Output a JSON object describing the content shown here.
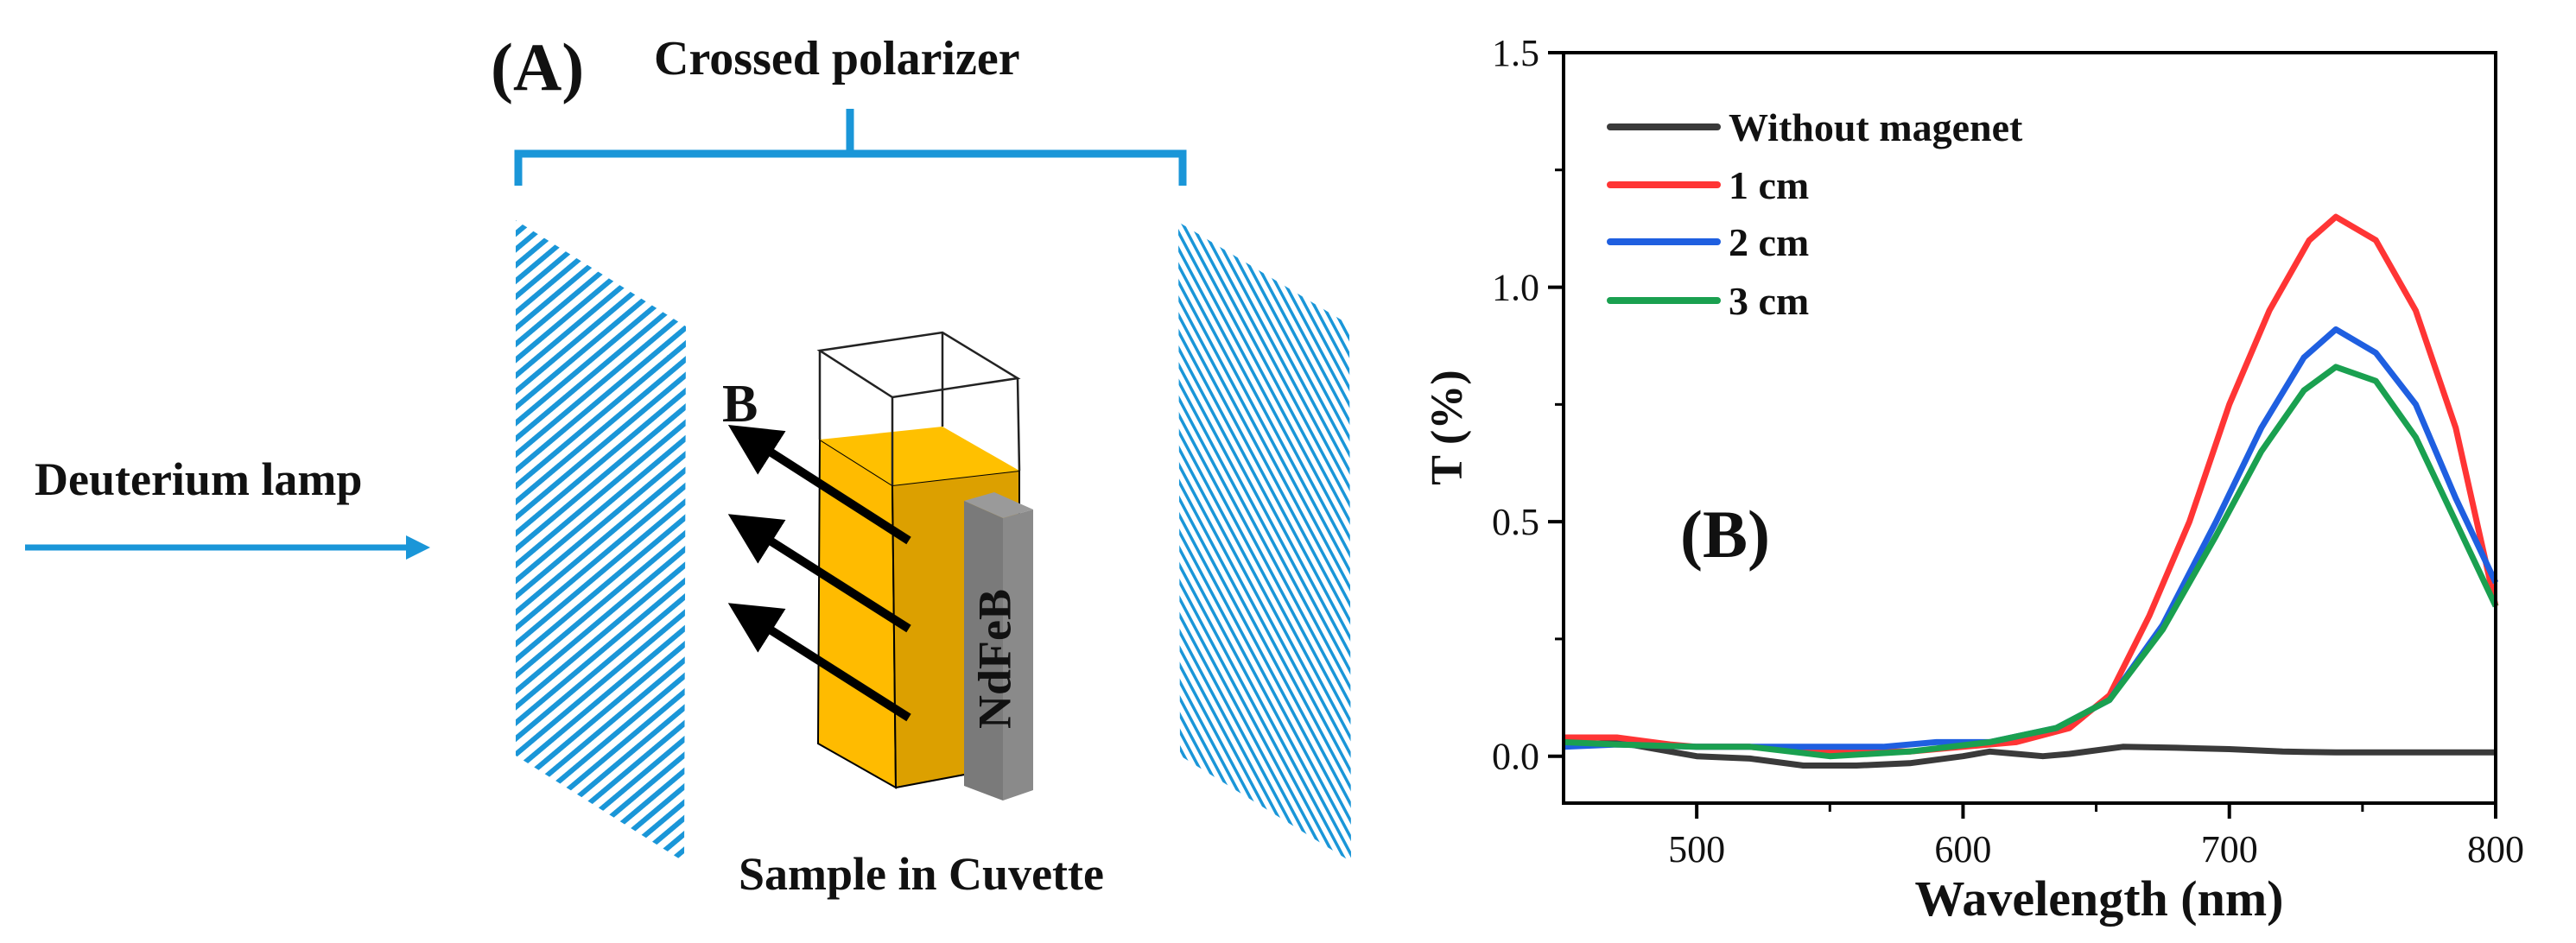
{
  "diagram": {
    "panel_label": "(A)",
    "polarizer_label": "Crossed polarizer",
    "lamp_label": "Deuterium lamp",
    "field_label": "B",
    "magnet_label": "NdFeB",
    "sample_label": "Sample in Cuvette",
    "colors": {
      "polarizer": "#1a96d8",
      "liquid_front": "#ffbb00",
      "liquid_side": "#dca000",
      "magnet": "#808080"
    }
  },
  "chart_data": {
    "type": "line",
    "panel_label": "(B)",
    "title": "",
    "xlabel": "Wavelength (nm)",
    "ylabel": "T (%)",
    "xlim": [
      450,
      800
    ],
    "ylim": [
      -0.1,
      1.5
    ],
    "xticks": [
      500,
      600,
      700,
      800
    ],
    "xtick_labels": [
      "500",
      "600",
      "700",
      "800"
    ],
    "xminor": [
      550,
      650,
      750
    ],
    "yticks": [
      0.0,
      0.5,
      1.0,
      1.5
    ],
    "ytick_labels": [
      "0.0",
      "0.5",
      "1.0",
      "1.5"
    ],
    "yminor": [
      0.25,
      0.75,
      1.25
    ],
    "grid": false,
    "legend_position": "top-left",
    "series": [
      {
        "name": "Without magenet",
        "color": "#3a3a3a",
        "x": [
          450,
          470,
          490,
          500,
          520,
          540,
          560,
          580,
          600,
          610,
          620,
          630,
          640,
          660,
          680,
          700,
          720,
          740,
          760,
          780,
          800
        ],
        "y": [
          0.02,
          0.03,
          0.01,
          0.0,
          -0.005,
          -0.02,
          -0.02,
          -0.015,
          0.0,
          0.01,
          0.005,
          0.0,
          0.005,
          0.02,
          0.018,
          0.015,
          0.01,
          0.008,
          0.008,
          0.008,
          0.008
        ]
      },
      {
        "name": "1 cm",
        "color": "#ff3535",
        "x": [
          450,
          470,
          490,
          500,
          520,
          540,
          560,
          580,
          600,
          620,
          640,
          655,
          670,
          685,
          700,
          715,
          730,
          740,
          755,
          770,
          785,
          800
        ],
        "y": [
          0.04,
          0.04,
          0.025,
          0.02,
          0.02,
          0.01,
          0.01,
          0.01,
          0.02,
          0.03,
          0.06,
          0.13,
          0.3,
          0.5,
          0.75,
          0.95,
          1.1,
          1.15,
          1.1,
          0.95,
          0.7,
          0.32
        ]
      },
      {
        "name": "2 cm",
        "color": "#1f5fe0",
        "x": [
          450,
          470,
          500,
          520,
          550,
          570,
          590,
          610,
          635,
          655,
          675,
          695,
          712,
          728,
          740,
          755,
          770,
          785,
          800
        ],
        "y": [
          0.02,
          0.025,
          0.02,
          0.02,
          0.02,
          0.02,
          0.03,
          0.03,
          0.06,
          0.12,
          0.28,
          0.5,
          0.7,
          0.85,
          0.91,
          0.86,
          0.75,
          0.55,
          0.37
        ]
      },
      {
        "name": "3 cm",
        "color": "#1aa050",
        "x": [
          450,
          470,
          500,
          520,
          550,
          580,
          610,
          635,
          655,
          675,
          695,
          712,
          728,
          740,
          755,
          770,
          785,
          800
        ],
        "y": [
          0.03,
          0.025,
          0.02,
          0.02,
          0.0,
          0.01,
          0.03,
          0.06,
          0.12,
          0.27,
          0.47,
          0.65,
          0.78,
          0.83,
          0.8,
          0.68,
          0.5,
          0.32
        ]
      }
    ]
  }
}
